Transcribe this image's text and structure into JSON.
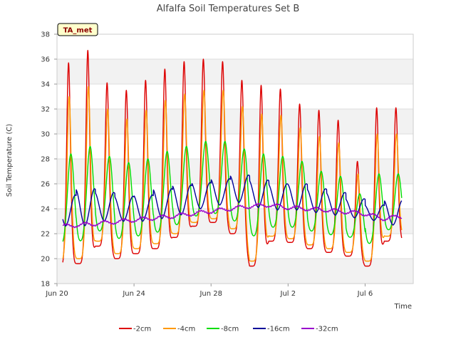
{
  "chart_data": {
    "type": "line",
    "title": "Alfalfa Soil Temperatures Set B",
    "xlabel": "Time",
    "ylabel": "Soil Temperature (C)",
    "badge": "TA_met",
    "ylim": [
      18,
      38
    ],
    "yticks": [
      18,
      20,
      22,
      24,
      26,
      28,
      30,
      32,
      34,
      36,
      38
    ],
    "xlim_days": [
      0,
      18.5
    ],
    "x_ticks": [
      {
        "day": 0,
        "label": "Jun 20"
      },
      {
        "day": 4,
        "label": "Jun 24"
      },
      {
        "day": 8,
        "label": "Jun 28"
      },
      {
        "day": 12,
        "label": "Jul 2"
      },
      {
        "day": 16,
        "label": "Jul 6"
      }
    ],
    "x_start_day": 0.3,
    "x_end_day": 17.9,
    "grid": true,
    "legend_position": "bottom",
    "series": [
      {
        "name": "-2cm",
        "color": "#dd0000",
        "peaks": [
          35.7,
          36.7,
          34.1,
          33.5,
          34.3,
          35.2,
          35.8,
          36.0,
          35.8,
          34.3,
          33.9,
          33.6,
          32.4,
          31.9,
          31.1,
          27.8,
          32.1
        ],
        "troughs": [
          19.3,
          19.6,
          21.0,
          20.0,
          20.4,
          20.8,
          21.7,
          22.6,
          22.9,
          22.0,
          19.4,
          21.4,
          21.3,
          20.8,
          20.5,
          20.2,
          19.4,
          21.4
        ],
        "phase": 0.6,
        "width": 0.35
      },
      {
        "name": "-4cm",
        "color": "#ff9900",
        "peaks": [
          33.0,
          33.8,
          32.0,
          31.2,
          31.9,
          32.7,
          33.2,
          33.5,
          33.5,
          32.2,
          31.6,
          31.5,
          30.5,
          29.8,
          29.3,
          26.8,
          30.0
        ],
        "troughs": [
          19.8,
          20.0,
          21.4,
          20.4,
          20.8,
          21.2,
          22.0,
          22.9,
          23.2,
          22.4,
          19.8,
          21.8,
          21.6,
          21.1,
          20.8,
          20.5,
          19.8,
          21.8
        ],
        "phase": 0.63,
        "width": 0.38
      },
      {
        "name": "-8cm",
        "color": "#00dd00",
        "peaks": [
          28.4,
          29.0,
          28.2,
          27.7,
          28.0,
          28.6,
          29.0,
          29.4,
          29.4,
          28.8,
          28.4,
          28.2,
          27.8,
          27.0,
          26.6,
          25.2,
          26.8
        ],
        "troughs": [
          21.2,
          21.4,
          22.2,
          21.6,
          21.8,
          22.1,
          22.7,
          23.4,
          23.6,
          23.0,
          21.8,
          22.5,
          22.5,
          22.2,
          21.9,
          21.7,
          21.2,
          22.3
        ],
        "phase": 0.72,
        "width": 0.7
      },
      {
        "name": "-16cm",
        "color": "#000099",
        "peaks": [
          25.1,
          25.6,
          25.3,
          25.0,
          25.1,
          25.6,
          25.9,
          26.1,
          26.4,
          26.7,
          26.3,
          26.0,
          26.0,
          25.6,
          25.3,
          24.8,
          24.3,
          24.7
        ],
        "troughs": [
          22.5,
          22.5,
          22.9,
          22.9,
          22.9,
          23.1,
          23.4,
          23.9,
          24.2,
          24.4,
          24.0,
          23.8,
          23.8,
          23.6,
          23.4,
          23.2,
          23.0,
          22.6
        ],
        "phase": 0.95,
        "width": 1.0
      },
      {
        "name": "-32cm",
        "color": "#9900cc",
        "level": [
          [
            0.3,
            22.6
          ],
          [
            2,
            22.8
          ],
          [
            4,
            23.1
          ],
          [
            6,
            23.4
          ],
          [
            8,
            23.8
          ],
          [
            10,
            24.2
          ],
          [
            11,
            24.3
          ],
          [
            12,
            24.1
          ],
          [
            14,
            23.9
          ],
          [
            16,
            23.6
          ],
          [
            17,
            23.2
          ],
          [
            17.9,
            23.4
          ]
        ],
        "amplitude": 0.15
      }
    ]
  }
}
